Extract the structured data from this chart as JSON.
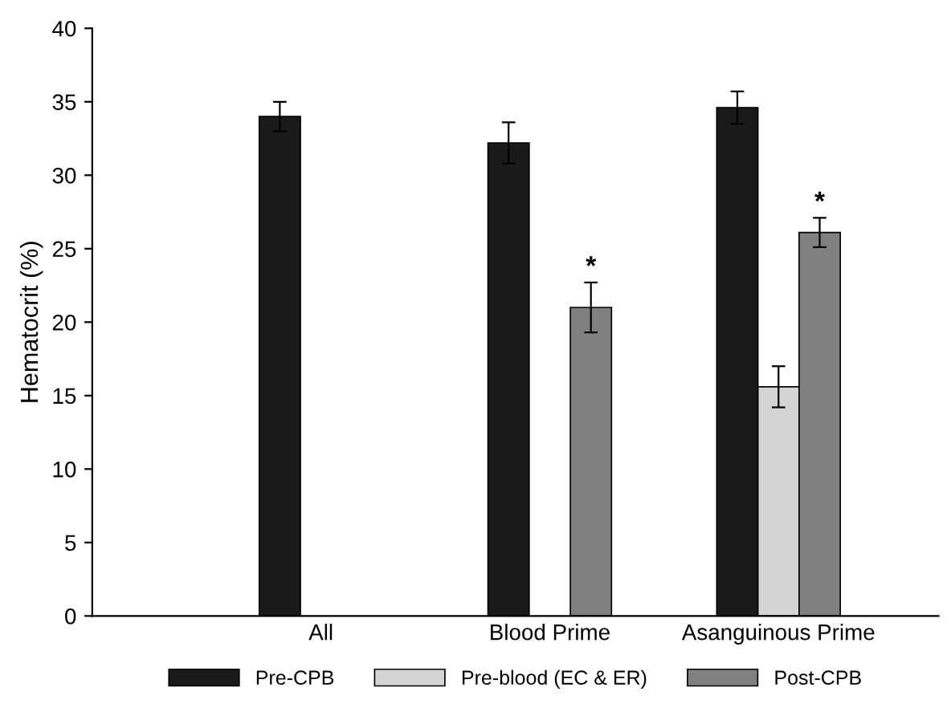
{
  "chart_data": {
    "type": "bar",
    "ylabel": "Hematocrit (%)",
    "categories": [
      "All",
      "Blood Prime",
      "Asanguinous Prime"
    ],
    "series": [
      {
        "name": "Pre-CPB",
        "color": "#1a1a1a",
        "values": [
          34.0,
          32.2,
          34.6
        ],
        "errors": [
          1.0,
          1.4,
          1.1
        ]
      },
      {
        "name": "Pre-blood (EC & ER)",
        "color": "#d4d4d4",
        "values": [
          null,
          null,
          15.6
        ],
        "errors": [
          null,
          null,
          1.4
        ]
      },
      {
        "name": "Post-CPB",
        "color": "#808080",
        "values": [
          null,
          21.0,
          26.1
        ],
        "errors": [
          null,
          1.7,
          1.0
        ]
      }
    ],
    "ylim": [
      0,
      40
    ],
    "yticks": [
      0,
      5,
      10,
      15,
      20,
      25,
      30,
      35,
      40
    ],
    "annotations": [
      "*",
      "*"
    ],
    "grid": false,
    "legend": "bottom"
  }
}
